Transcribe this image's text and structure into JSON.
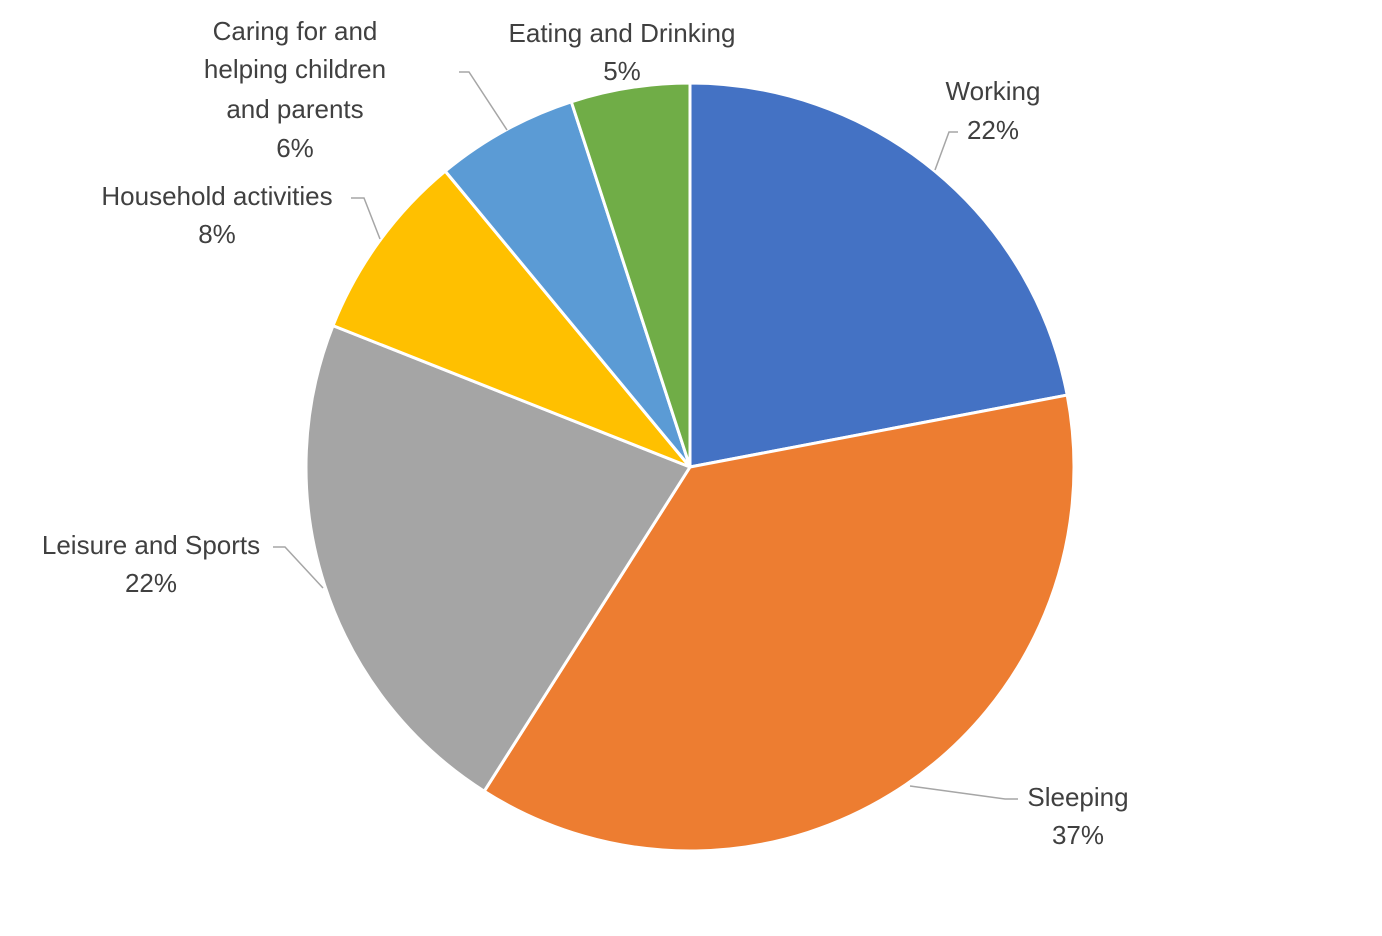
{
  "chart_data": {
    "type": "pie",
    "title": "",
    "legend": "none",
    "data_labels": "category-and-percent",
    "start_angle_deg": 0,
    "direction": "clockwise",
    "slices": [
      {
        "label": "Working",
        "percent_label": "22%",
        "value": 22,
        "color": "#4472C4"
      },
      {
        "label": "Sleeping",
        "percent_label": "37%",
        "value": 37,
        "color": "#ED7D31"
      },
      {
        "label": "Leisure and Sports",
        "percent_label": "22%",
        "value": 22,
        "color": "#A5A5A5"
      },
      {
        "label": "Household activities",
        "percent_label": "8%",
        "value": 8,
        "color": "#FFC000"
      },
      {
        "label": "Caring for and helping children and parents",
        "percent_label": "6%",
        "value": 6,
        "color": "#5B9BD5"
      },
      {
        "label": "Eating and Drinking",
        "percent_label": "5%",
        "value": 5,
        "color": "#70AD47"
      }
    ]
  }
}
